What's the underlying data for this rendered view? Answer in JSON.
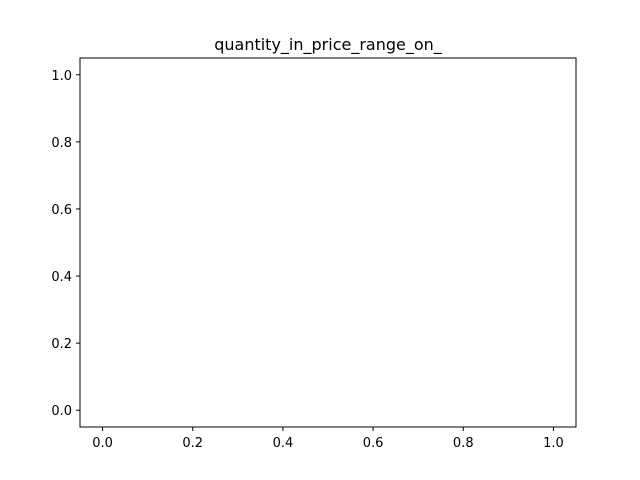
{
  "chart_data": {
    "type": "line",
    "title": "quantity_in_price_range_on_",
    "xlabel": "",
    "ylabel": "",
    "series": [],
    "xlim": [
      -0.05,
      1.05
    ],
    "ylim": [
      -0.05,
      1.05
    ],
    "xticks": [
      0.0,
      0.2,
      0.4,
      0.6,
      0.8,
      1.0
    ],
    "yticks": [
      0.0,
      0.2,
      0.4,
      0.6,
      0.8,
      1.0
    ],
    "xtick_labels": [
      "0.0",
      "0.2",
      "0.4",
      "0.6",
      "0.8",
      "1.0"
    ],
    "ytick_labels": [
      "0.0",
      "0.2",
      "0.4",
      "0.6",
      "0.8",
      "1.0"
    ],
    "grid": false,
    "legend": "none"
  }
}
